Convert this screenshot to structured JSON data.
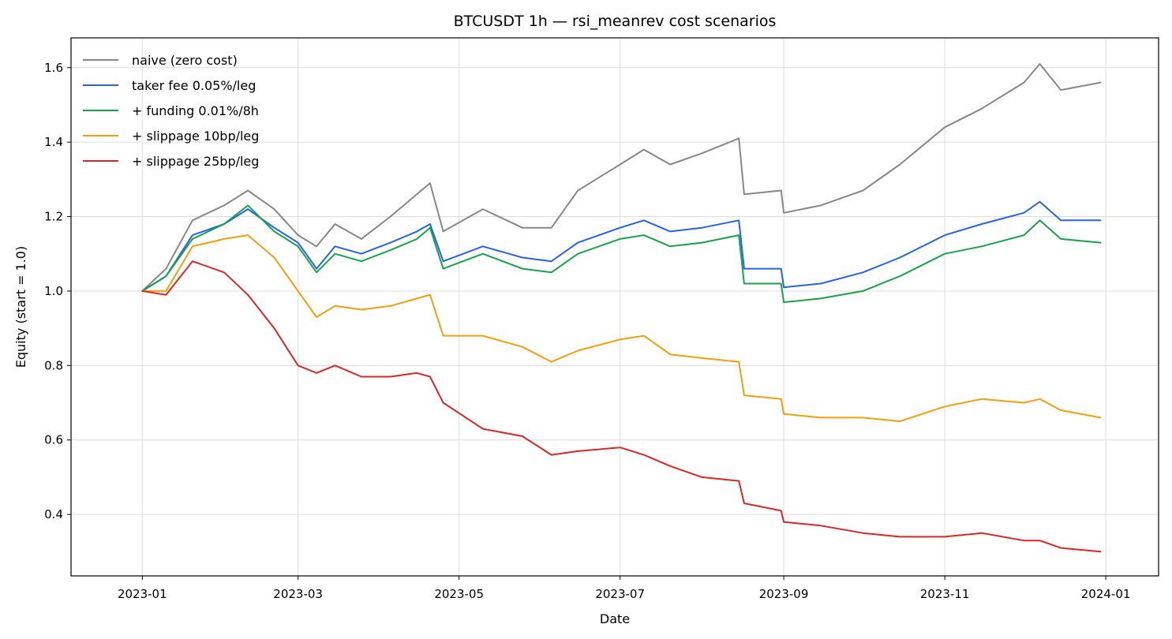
{
  "chart_data": {
    "type": "line",
    "title": "BTCUSDT 1h — rsi_meanrev cost scenarios",
    "xlabel": "Date",
    "ylabel": "Equity (start = 1.0)",
    "x_is_date": true,
    "xlim": [
      "2022-12-05",
      "2024-01-21"
    ],
    "ylim": [
      0.235,
      1.68
    ],
    "x_ticks": [
      "2023-01-01",
      "2023-03-01",
      "2023-05-01",
      "2023-07-01",
      "2023-09-01",
      "2023-11-01",
      "2024-01-01"
    ],
    "x_tick_labels": [
      "2023-01",
      "2023-03",
      "2023-05",
      "2023-07",
      "2023-09",
      "2023-11",
      "2024-01"
    ],
    "y_ticks": [
      0.4,
      0.6,
      0.8,
      1.0,
      1.2,
      1.4,
      1.6
    ],
    "y_tick_labels": [
      "0.4",
      "0.6",
      "0.8",
      "1.0",
      "1.2",
      "1.4",
      "1.6"
    ],
    "grid": true,
    "legend_position": "upper left",
    "series": [
      {
        "name": "naive (zero cost)",
        "color": "#888888",
        "x": [
          "2023-01-01",
          "2023-01-10",
          "2023-01-20",
          "2023-02-01",
          "2023-02-10",
          "2023-02-20",
          "2023-03-01",
          "2023-03-08",
          "2023-03-15",
          "2023-03-25",
          "2023-04-05",
          "2023-04-15",
          "2023-04-20",
          "2023-04-25",
          "2023-05-10",
          "2023-05-25",
          "2023-06-05",
          "2023-06-15",
          "2023-07-01",
          "2023-07-10",
          "2023-07-20",
          "2023-08-01",
          "2023-08-15",
          "2023-08-17",
          "2023-08-31",
          "2023-09-01",
          "2023-09-15",
          "2023-10-01",
          "2023-10-15",
          "2023-11-01",
          "2023-11-15",
          "2023-12-01",
          "2023-12-07",
          "2023-12-15",
          "2023-12-30"
        ],
        "y": [
          1.0,
          1.06,
          1.19,
          1.23,
          1.27,
          1.22,
          1.15,
          1.12,
          1.18,
          1.14,
          1.2,
          1.26,
          1.29,
          1.16,
          1.22,
          1.17,
          1.17,
          1.27,
          1.34,
          1.38,
          1.34,
          1.37,
          1.41,
          1.26,
          1.27,
          1.21,
          1.23,
          1.27,
          1.34,
          1.44,
          1.49,
          1.56,
          1.61,
          1.54,
          1.56
        ]
      },
      {
        "name": "taker fee 0.05%/leg",
        "color": "#2563eb",
        "x": [
          "2023-01-01",
          "2023-01-10",
          "2023-01-20",
          "2023-02-01",
          "2023-02-10",
          "2023-02-20",
          "2023-03-01",
          "2023-03-08",
          "2023-03-15",
          "2023-03-25",
          "2023-04-05",
          "2023-04-15",
          "2023-04-20",
          "2023-04-25",
          "2023-05-10",
          "2023-05-25",
          "2023-06-05",
          "2023-06-15",
          "2023-07-01",
          "2023-07-10",
          "2023-07-20",
          "2023-08-01",
          "2023-08-15",
          "2023-08-17",
          "2023-08-31",
          "2023-09-01",
          "2023-09-15",
          "2023-10-01",
          "2023-10-15",
          "2023-11-01",
          "2023-11-15",
          "2023-12-01",
          "2023-12-07",
          "2023-12-15",
          "2023-12-30"
        ],
        "y": [
          1.0,
          1.04,
          1.15,
          1.18,
          1.22,
          1.17,
          1.13,
          1.06,
          1.12,
          1.1,
          1.13,
          1.16,
          1.18,
          1.08,
          1.12,
          1.09,
          1.08,
          1.13,
          1.17,
          1.19,
          1.16,
          1.17,
          1.19,
          1.06,
          1.06,
          1.01,
          1.02,
          1.05,
          1.09,
          1.15,
          1.18,
          1.21,
          1.24,
          1.19,
          1.19
        ]
      },
      {
        "name": "+ funding 0.01%/8h",
        "color": "#16a34a",
        "x": [
          "2023-01-01",
          "2023-01-10",
          "2023-01-20",
          "2023-02-01",
          "2023-02-10",
          "2023-02-20",
          "2023-03-01",
          "2023-03-08",
          "2023-03-15",
          "2023-03-25",
          "2023-04-05",
          "2023-04-15",
          "2023-04-20",
          "2023-04-25",
          "2023-05-10",
          "2023-05-25",
          "2023-06-05",
          "2023-06-15",
          "2023-07-01",
          "2023-07-10",
          "2023-07-20",
          "2023-08-01",
          "2023-08-15",
          "2023-08-17",
          "2023-08-31",
          "2023-09-01",
          "2023-09-15",
          "2023-10-01",
          "2023-10-15",
          "2023-11-01",
          "2023-11-15",
          "2023-12-01",
          "2023-12-07",
          "2023-12-15",
          "2023-12-30"
        ],
        "y": [
          1.0,
          1.04,
          1.14,
          1.18,
          1.23,
          1.16,
          1.12,
          1.05,
          1.1,
          1.08,
          1.11,
          1.14,
          1.17,
          1.06,
          1.1,
          1.06,
          1.05,
          1.1,
          1.14,
          1.15,
          1.12,
          1.13,
          1.15,
          1.02,
          1.02,
          0.97,
          0.98,
          1.0,
          1.04,
          1.1,
          1.12,
          1.15,
          1.19,
          1.14,
          1.13
        ]
      },
      {
        "name": "+ slippage 10bp/leg",
        "color": "#f59e0b",
        "x": [
          "2023-01-01",
          "2023-01-10",
          "2023-01-20",
          "2023-02-01",
          "2023-02-10",
          "2023-02-20",
          "2023-03-01",
          "2023-03-08",
          "2023-03-15",
          "2023-03-25",
          "2023-04-05",
          "2023-04-15",
          "2023-04-20",
          "2023-04-25",
          "2023-05-10",
          "2023-05-25",
          "2023-06-05",
          "2023-06-15",
          "2023-07-01",
          "2023-07-10",
          "2023-07-20",
          "2023-08-01",
          "2023-08-15",
          "2023-08-17",
          "2023-08-31",
          "2023-09-01",
          "2023-09-15",
          "2023-10-01",
          "2023-10-15",
          "2023-11-01",
          "2023-11-15",
          "2023-12-01",
          "2023-12-07",
          "2023-12-15",
          "2023-12-30"
        ],
        "y": [
          1.0,
          1.0,
          1.12,
          1.14,
          1.15,
          1.09,
          1.0,
          0.93,
          0.96,
          0.95,
          0.96,
          0.98,
          0.99,
          0.88,
          0.88,
          0.85,
          0.81,
          0.84,
          0.87,
          0.88,
          0.83,
          0.82,
          0.81,
          0.72,
          0.71,
          0.67,
          0.66,
          0.66,
          0.65,
          0.69,
          0.71,
          0.7,
          0.71,
          0.68,
          0.66
        ]
      },
      {
        "name": "+ slippage 25bp/leg",
        "color": "#dc2626",
        "x": [
          "2023-01-01",
          "2023-01-10",
          "2023-01-20",
          "2023-02-01",
          "2023-02-10",
          "2023-02-20",
          "2023-03-01",
          "2023-03-08",
          "2023-03-15",
          "2023-03-25",
          "2023-04-05",
          "2023-04-15",
          "2023-04-20",
          "2023-04-25",
          "2023-05-10",
          "2023-05-25",
          "2023-06-05",
          "2023-06-15",
          "2023-07-01",
          "2023-07-10",
          "2023-07-20",
          "2023-08-01",
          "2023-08-15",
          "2023-08-17",
          "2023-08-31",
          "2023-09-01",
          "2023-09-15",
          "2023-10-01",
          "2023-10-15",
          "2023-11-01",
          "2023-11-15",
          "2023-12-01",
          "2023-12-07",
          "2023-12-15",
          "2023-12-30"
        ],
        "y": [
          1.0,
          0.99,
          1.08,
          1.05,
          0.99,
          0.9,
          0.8,
          0.78,
          0.8,
          0.77,
          0.77,
          0.78,
          0.77,
          0.7,
          0.63,
          0.61,
          0.56,
          0.57,
          0.58,
          0.56,
          0.53,
          0.5,
          0.49,
          0.43,
          0.41,
          0.38,
          0.37,
          0.35,
          0.34,
          0.34,
          0.35,
          0.33,
          0.33,
          0.31,
          0.3
        ]
      }
    ]
  }
}
